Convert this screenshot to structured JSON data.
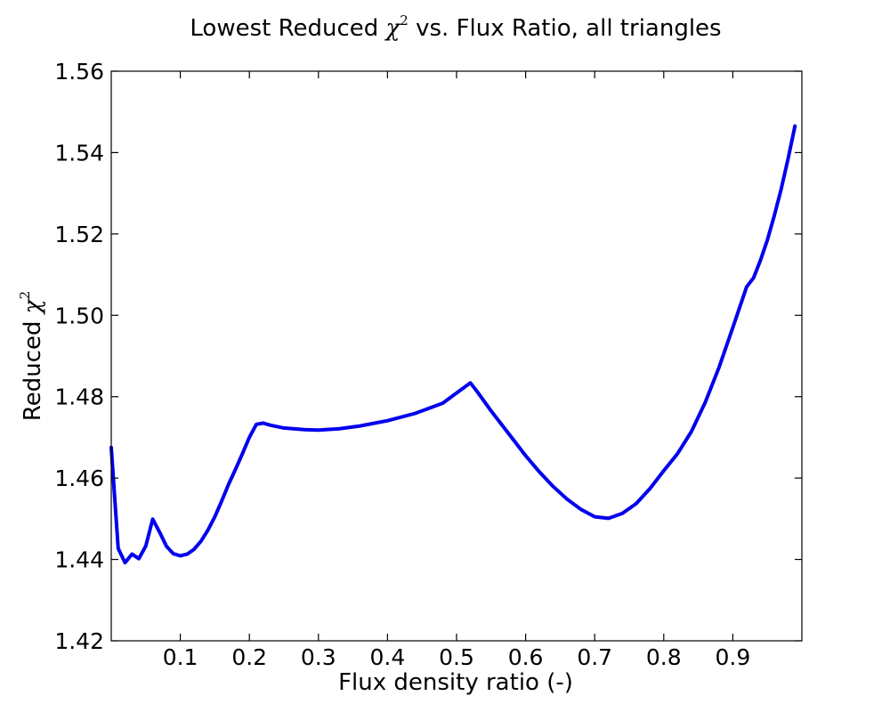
{
  "chart_data": {
    "type": "line",
    "title": {
      "pre": "Lowest Reduced ",
      "symbol": "χ",
      "sup": "2",
      "post": "  vs. Flux Ratio, all triangles"
    },
    "xlabel": "Flux density ratio (-)",
    "ylabel": {
      "pre": "Reduced ",
      "symbol": "χ",
      "sup": "2"
    },
    "xlim": [
      0.0,
      1.0
    ],
    "ylim": [
      1.42,
      1.56
    ],
    "xticks": [
      0.1,
      0.2,
      0.3,
      0.4,
      0.5,
      0.6,
      0.7,
      0.8,
      0.9
    ],
    "xtick_labels": [
      "0.1",
      "0.2",
      "0.3",
      "0.4",
      "0.5",
      "0.6",
      "0.7",
      "0.8",
      "0.9"
    ],
    "yticks": [
      1.42,
      1.44,
      1.46,
      1.48,
      1.5,
      1.52,
      1.54,
      1.56
    ],
    "ytick_labels": [
      "1.42",
      "1.44",
      "1.46",
      "1.48",
      "1.50",
      "1.52",
      "1.54",
      "1.56"
    ],
    "grid": false,
    "series": [
      {
        "color": "#0000ee",
        "x": [
          0.0,
          0.01,
          0.02,
          0.03,
          0.04,
          0.05,
          0.06,
          0.07,
          0.08,
          0.09,
          0.1,
          0.11,
          0.12,
          0.13,
          0.14,
          0.15,
          0.16,
          0.17,
          0.18,
          0.19,
          0.2,
          0.21,
          0.22,
          0.23,
          0.25,
          0.28,
          0.3,
          0.33,
          0.36,
          0.4,
          0.44,
          0.48,
          0.52,
          0.53,
          0.55,
          0.58,
          0.6,
          0.62,
          0.64,
          0.66,
          0.68,
          0.7,
          0.72,
          0.74,
          0.76,
          0.78,
          0.8,
          0.82,
          0.84,
          0.86,
          0.88,
          0.9,
          0.92,
          0.93,
          0.94,
          0.95,
          0.96,
          0.97,
          0.98,
          0.99
        ],
        "y": [
          1.4675,
          1.4427,
          1.4392,
          1.4413,
          1.4402,
          1.4433,
          1.4499,
          1.4467,
          1.4432,
          1.4414,
          1.4409,
          1.4413,
          1.4425,
          1.4445,
          1.4472,
          1.4505,
          1.4544,
          1.4585,
          1.4622,
          1.466,
          1.47,
          1.4732,
          1.4735,
          1.473,
          1.4723,
          1.4719,
          1.4718,
          1.4721,
          1.4728,
          1.4741,
          1.4759,
          1.4784,
          1.4834,
          1.4812,
          1.4765,
          1.4699,
          1.4655,
          1.4615,
          1.4579,
          1.4548,
          1.4523,
          1.4505,
          1.4501,
          1.4513,
          1.4537,
          1.4574,
          1.4618,
          1.466,
          1.4714,
          1.4786,
          1.4872,
          1.497,
          1.507,
          1.5092,
          1.5135,
          1.5185,
          1.5245,
          1.531,
          1.5385,
          1.5465
        ]
      }
    ]
  }
}
